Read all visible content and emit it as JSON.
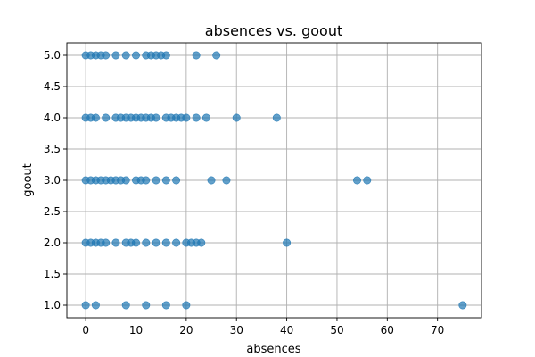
{
  "chart_data": {
    "type": "scatter",
    "title": "absences vs. goout",
    "xlabel": "absences",
    "ylabel": "goout",
    "xlim": [
      -3.75,
      78.75
    ],
    "ylim": [
      0.8,
      5.2
    ],
    "xticks": [
      0,
      10,
      20,
      30,
      40,
      50,
      60,
      70
    ],
    "yticks": [
      1.0,
      1.5,
      2.0,
      2.5,
      3.0,
      3.5,
      4.0,
      4.5,
      5.0
    ],
    "xtick_labels": [
      "0",
      "10",
      "20",
      "30",
      "40",
      "50",
      "60",
      "70"
    ],
    "ytick_labels": [
      "1.0",
      "1.5",
      "2.0",
      "2.5",
      "3.0",
      "3.5",
      "4.0",
      "4.5",
      "5.0"
    ],
    "grid": true,
    "marker_color": "#1f77b4",
    "marker_alpha": 0.7,
    "points": [
      {
        "x": 0,
        "y": 5
      },
      {
        "x": 1,
        "y": 5
      },
      {
        "x": 2,
        "y": 5
      },
      {
        "x": 3,
        "y": 5
      },
      {
        "x": 4,
        "y": 5
      },
      {
        "x": 6,
        "y": 5
      },
      {
        "x": 8,
        "y": 5
      },
      {
        "x": 10,
        "y": 5
      },
      {
        "x": 12,
        "y": 5
      },
      {
        "x": 13,
        "y": 5
      },
      {
        "x": 14,
        "y": 5
      },
      {
        "x": 15,
        "y": 5
      },
      {
        "x": 16,
        "y": 5
      },
      {
        "x": 22,
        "y": 5
      },
      {
        "x": 26,
        "y": 5
      },
      {
        "x": 0,
        "y": 4
      },
      {
        "x": 1,
        "y": 4
      },
      {
        "x": 2,
        "y": 4
      },
      {
        "x": 4,
        "y": 4
      },
      {
        "x": 6,
        "y": 4
      },
      {
        "x": 7,
        "y": 4
      },
      {
        "x": 8,
        "y": 4
      },
      {
        "x": 9,
        "y": 4
      },
      {
        "x": 10,
        "y": 4
      },
      {
        "x": 11,
        "y": 4
      },
      {
        "x": 12,
        "y": 4
      },
      {
        "x": 13,
        "y": 4
      },
      {
        "x": 14,
        "y": 4
      },
      {
        "x": 16,
        "y": 4
      },
      {
        "x": 17,
        "y": 4
      },
      {
        "x": 18,
        "y": 4
      },
      {
        "x": 19,
        "y": 4
      },
      {
        "x": 20,
        "y": 4
      },
      {
        "x": 22,
        "y": 4
      },
      {
        "x": 24,
        "y": 4
      },
      {
        "x": 30,
        "y": 4
      },
      {
        "x": 38,
        "y": 4
      },
      {
        "x": 0,
        "y": 3
      },
      {
        "x": 1,
        "y": 3
      },
      {
        "x": 2,
        "y": 3
      },
      {
        "x": 3,
        "y": 3
      },
      {
        "x": 4,
        "y": 3
      },
      {
        "x": 5,
        "y": 3
      },
      {
        "x": 6,
        "y": 3
      },
      {
        "x": 7,
        "y": 3
      },
      {
        "x": 8,
        "y": 3
      },
      {
        "x": 10,
        "y": 3
      },
      {
        "x": 11,
        "y": 3
      },
      {
        "x": 12,
        "y": 3
      },
      {
        "x": 14,
        "y": 3
      },
      {
        "x": 16,
        "y": 3
      },
      {
        "x": 18,
        "y": 3
      },
      {
        "x": 25,
        "y": 3
      },
      {
        "x": 28,
        "y": 3
      },
      {
        "x": 54,
        "y": 3
      },
      {
        "x": 56,
        "y": 3
      },
      {
        "x": 0,
        "y": 2
      },
      {
        "x": 1,
        "y": 2
      },
      {
        "x": 2,
        "y": 2
      },
      {
        "x": 3,
        "y": 2
      },
      {
        "x": 4,
        "y": 2
      },
      {
        "x": 6,
        "y": 2
      },
      {
        "x": 8,
        "y": 2
      },
      {
        "x": 9,
        "y": 2
      },
      {
        "x": 10,
        "y": 2
      },
      {
        "x": 12,
        "y": 2
      },
      {
        "x": 14,
        "y": 2
      },
      {
        "x": 16,
        "y": 2
      },
      {
        "x": 18,
        "y": 2
      },
      {
        "x": 20,
        "y": 2
      },
      {
        "x": 21,
        "y": 2
      },
      {
        "x": 22,
        "y": 2
      },
      {
        "x": 23,
        "y": 2
      },
      {
        "x": 40,
        "y": 2
      },
      {
        "x": 0,
        "y": 1
      },
      {
        "x": 2,
        "y": 1
      },
      {
        "x": 8,
        "y": 1
      },
      {
        "x": 12,
        "y": 1
      },
      {
        "x": 16,
        "y": 1
      },
      {
        "x": 20,
        "y": 1
      },
      {
        "x": 75,
        "y": 1
      }
    ]
  }
}
